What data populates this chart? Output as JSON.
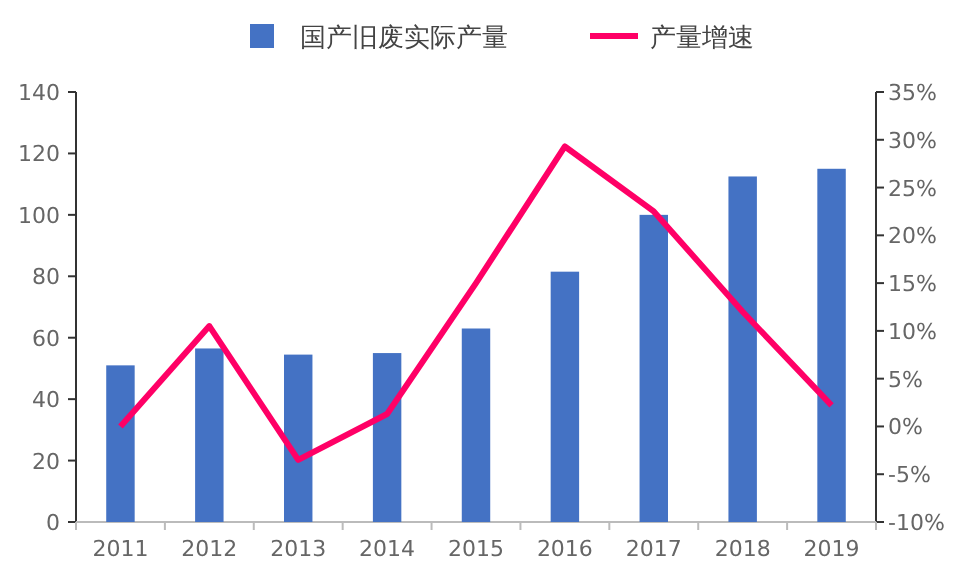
{
  "chart_data": {
    "type": "bar",
    "categories": [
      "2011",
      "2012",
      "2013",
      "2014",
      "2015",
      "2016",
      "2017",
      "2018",
      "2019"
    ],
    "series": [
      {
        "name": "国产旧废实际产量",
        "color": "#4472c4",
        "values": [
          51,
          56.5,
          54.5,
          55,
          63,
          81.5,
          100,
          112.5,
          115
        ]
      },
      {
        "name": "产量增速",
        "type": "line",
        "axis": "y2",
        "color": "#ff0066",
        "values": [
          0,
          10.5,
          -3.5,
          1.3,
          15,
          29.3,
          22.5,
          12,
          2.2
        ]
      }
    ],
    "ylim": [
      0,
      140
    ],
    "yticks": [
      0,
      20,
      40,
      60,
      80,
      100,
      120,
      140
    ],
    "y2lim": [
      -10,
      35
    ],
    "y2ticks": [
      {
        "value": -10,
        "label": "-10%"
      },
      {
        "value": -5,
        "label": "-5%"
      },
      {
        "value": 0,
        "label": "0%"
      },
      {
        "value": 5,
        "label": "5%"
      },
      {
        "value": 10,
        "label": "10%"
      },
      {
        "value": 15,
        "label": "15%"
      },
      {
        "value": 20,
        "label": "20%"
      },
      {
        "value": 25,
        "label": "25%"
      },
      {
        "value": 30,
        "label": "30%"
      },
      {
        "value": 35,
        "label": "35%"
      }
    ],
    "legend": "top",
    "grid": false
  }
}
